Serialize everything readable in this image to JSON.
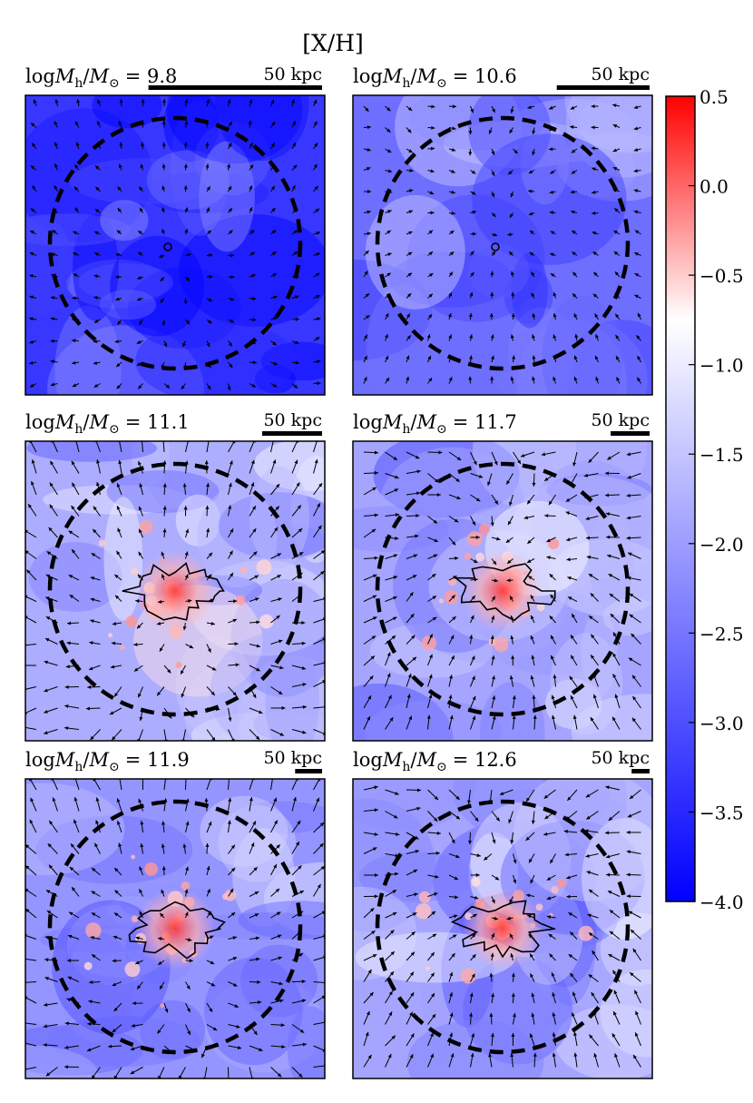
{
  "chart_data": {
    "type": "heatmap",
    "title": "[X/H]",
    "layout": "3 rows x 2 columns of projection maps",
    "colorbar": {
      "label": "",
      "vmin": -4.0,
      "vmax": 0.5,
      "ticks": [
        0.5,
        0.0,
        -0.5,
        -1.0,
        -1.5,
        -2.0,
        -2.5,
        -3.0,
        -3.5,
        -4.0
      ],
      "tick_labels": [
        "0.5",
        "0.0",
        "−0.5",
        "−1.0",
        "−1.5",
        "−2.0",
        "−2.5",
        "−3.0",
        "−3.5",
        "−4.0"
      ],
      "colormap": [
        "#0000ff",
        "#ffffff",
        "#ff0000"
      ],
      "center_value": -0.75
    },
    "panels": [
      {
        "label_prefix": "log",
        "mass_symbol": "M",
        "mass_sub": "h",
        "sun_symbol": "M",
        "sun_sub": "⊙",
        "label_value": "= 9.8",
        "scalebar": "50 kpc",
        "scalebar_fraction": 0.58,
        "background_level": -3.3,
        "enriched_core": false
      },
      {
        "label_prefix": "log",
        "mass_symbol": "M",
        "mass_sub": "h",
        "sun_symbol": "M",
        "sun_sub": "⊙",
        "label_value": "= 10.6",
        "scalebar": "50 kpc",
        "scalebar_fraction": 0.31,
        "background_level": -2.6,
        "enriched_core": false
      },
      {
        "label_prefix": "log",
        "mass_symbol": "M",
        "mass_sub": "h",
        "sun_symbol": "M",
        "sun_sub": "⊙",
        "label_value": "= 11.1",
        "scalebar": "50 kpc",
        "scalebar_fraction": 0.2,
        "background_level": -1.8,
        "enriched_core": true
      },
      {
        "label_prefix": "log",
        "mass_symbol": "M",
        "mass_sub": "h",
        "sun_symbol": "M",
        "sun_sub": "⊙",
        "label_value": "= 11.7",
        "scalebar": "50 kpc",
        "scalebar_fraction": 0.13,
        "background_level": -1.9,
        "enriched_core": true
      },
      {
        "label_prefix": "log",
        "mass_symbol": "M",
        "mass_sub": "h",
        "sun_symbol": "M",
        "sun_sub": "⊙",
        "label_value": "= 11.9",
        "scalebar": "50 kpc",
        "scalebar_fraction": 0.09,
        "background_level": -2.1,
        "enriched_core": true
      },
      {
        "label_prefix": "log",
        "mass_symbol": "M",
        "mass_sub": "h",
        "sun_symbol": "M",
        "sun_sub": "⊙",
        "label_value": "= 12.6",
        "scalebar": "50 kpc",
        "scalebar_fraction": 0.06,
        "background_level": -1.9,
        "enriched_core": true
      }
    ]
  }
}
